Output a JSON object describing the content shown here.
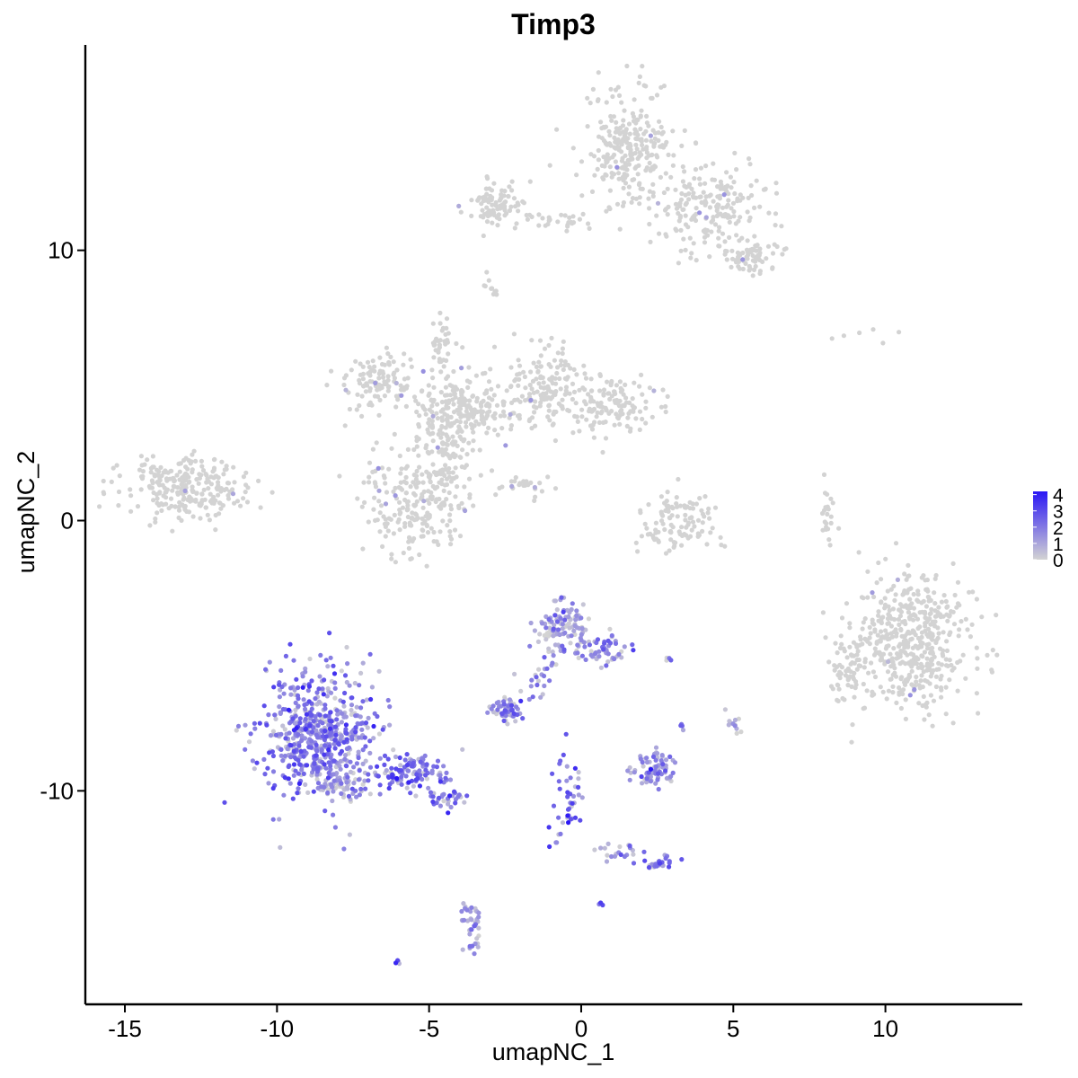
{
  "chart_data": {
    "type": "scatter",
    "title": "Timp3",
    "xlabel": "umapNC_1",
    "ylabel": "umapNC_2",
    "xlim": [
      -16.3,
      14.5
    ],
    "ylim": [
      -17.9,
      17.6
    ],
    "x_ticks": [
      -15,
      -10,
      -5,
      0,
      5,
      10
    ],
    "x_tick_labels": [
      "-15",
      "-10",
      "-5",
      "0",
      "5",
      "10"
    ],
    "y_ticks": [
      -10,
      0,
      10
    ],
    "y_tick_labels": [
      "-10",
      "0",
      "10"
    ],
    "grid": false,
    "legend": {
      "placement": "right",
      "type": "colorbar",
      "labels": [
        "4",
        "3",
        "2",
        "1",
        "0"
      ],
      "values": [
        4,
        3,
        2,
        1,
        0
      ],
      "range": [
        0,
        4.2
      ],
      "low_color": "#d3d3d3",
      "high_color": "#2a16f5"
    },
    "point_color_low": "#d3d3d3",
    "point_color_high": "#2a16f5",
    "clusters": [
      {
        "id": "top-right-upper",
        "cx": 1.5,
        "cy": 13.8,
        "sx": 0.7,
        "sy": 1.1,
        "n": 260,
        "expr": 0.0
      },
      {
        "id": "top-right-arm",
        "cx": 4.2,
        "cy": 11.6,
        "sx": 1.0,
        "sy": 0.8,
        "n": 200,
        "expr": 0.0
      },
      {
        "id": "top-right-tail",
        "cx": 5.6,
        "cy": 9.8,
        "sx": 0.45,
        "sy": 0.4,
        "n": 70,
        "expr": 0.0
      },
      {
        "id": "top-left-arm",
        "cx": -2.7,
        "cy": 11.7,
        "sx": 0.5,
        "sy": 0.45,
        "n": 90,
        "expr": 0.0
      },
      {
        "id": "top-bridge",
        "cx": -0.5,
        "cy": 11.1,
        "sx": 0.7,
        "sy": 0.15,
        "n": 25,
        "expr": 0.0
      },
      {
        "id": "top-small",
        "cx": -3.0,
        "cy": 8.7,
        "sx": 0.15,
        "sy": 0.3,
        "n": 10,
        "expr": 0.0
      },
      {
        "id": "mid-center",
        "cx": -3.9,
        "cy": 4.1,
        "sx": 0.8,
        "sy": 0.7,
        "n": 230,
        "expr": 0.0
      },
      {
        "id": "mid-left-arm",
        "cx": -6.7,
        "cy": 5.2,
        "sx": 0.6,
        "sy": 0.5,
        "n": 110,
        "expr": 0.0
      },
      {
        "id": "mid-up-arm",
        "cx": -4.6,
        "cy": 6.6,
        "sx": 0.2,
        "sy": 0.6,
        "n": 35,
        "expr": 0.0
      },
      {
        "id": "mid-right-arm",
        "cx": -1.1,
        "cy": 5.0,
        "sx": 0.6,
        "sy": 0.8,
        "n": 150,
        "expr": 0.0
      },
      {
        "id": "mid-right-lobe",
        "cx": 1.0,
        "cy": 4.3,
        "sx": 0.8,
        "sy": 0.6,
        "n": 130,
        "expr": 0.0
      },
      {
        "id": "mid-bottom-lobe",
        "cx": -5.5,
        "cy": 0.6,
        "sx": 0.8,
        "sy": 0.9,
        "n": 220,
        "expr": 0.0
      },
      {
        "id": "mid-stem",
        "cx": -4.4,
        "cy": 2.4,
        "sx": 0.4,
        "sy": 0.7,
        "n": 80,
        "expr": 0.0
      },
      {
        "id": "mid-streak",
        "cx": -1.8,
        "cy": 1.2,
        "sx": 0.5,
        "sy": 0.2,
        "n": 25,
        "expr": 0.0
      },
      {
        "id": "left-island",
        "cx": -13.0,
        "cy": 1.2,
        "sx": 1.0,
        "sy": 0.6,
        "n": 260,
        "expr": 0.0
      },
      {
        "id": "center-crescent",
        "cx": 3.2,
        "cy": 0.2,
        "sx": 0.55,
        "sy": 0.45,
        "n": 70,
        "expr": 0.0
      },
      {
        "id": "center-crescent-arc",
        "cx": 2.9,
        "cy": -0.6,
        "sx": 0.8,
        "sy": 0.25,
        "n": 40,
        "expr": 0.0
      },
      {
        "id": "thin-streak",
        "cx": 8.1,
        "cy": 0.3,
        "sx": 0.15,
        "sy": 0.5,
        "n": 22,
        "expr": 0.0
      },
      {
        "id": "right-blob",
        "cx": 10.8,
        "cy": -4.5,
        "sx": 0.9,
        "sy": 1.2,
        "n": 480,
        "expr": 0.0
      },
      {
        "id": "right-blob-left",
        "cx": 8.7,
        "cy": -5.4,
        "sx": 0.35,
        "sy": 0.8,
        "n": 60,
        "expr": 0.0
      },
      {
        "id": "right-sparse",
        "cx": 9.2,
        "cy": 6.8,
        "sx": 0.5,
        "sy": 0.2,
        "n": 6,
        "expr": 0.0
      },
      {
        "id": "purple-main",
        "cx": -8.6,
        "cy": -7.9,
        "sx": 0.95,
        "sy": 1.2,
        "n": 600,
        "expr": 1.9
      },
      {
        "id": "purple-tail",
        "cx": -5.6,
        "cy": -9.3,
        "sx": 0.7,
        "sy": 0.35,
        "n": 120,
        "expr": 2.3
      },
      {
        "id": "purple-tail-end",
        "cx": -4.3,
        "cy": -10.2,
        "sx": 0.35,
        "sy": 0.2,
        "n": 30,
        "expr": 2.0
      },
      {
        "id": "purple-main-bottom",
        "cx": -7.9,
        "cy": -9.8,
        "sx": 0.4,
        "sy": 0.2,
        "n": 40,
        "expr": 0.6
      },
      {
        "id": "mid-cluster-top",
        "cx": -0.6,
        "cy": -3.9,
        "sx": 0.4,
        "sy": 0.5,
        "n": 120,
        "expr": 1.0
      },
      {
        "id": "mid-cluster-arm",
        "cx": 0.8,
        "cy": -4.8,
        "sx": 0.4,
        "sy": 0.4,
        "n": 50,
        "expr": 1.8
      },
      {
        "id": "mid-cluster-arm2",
        "cx": -1.3,
        "cy": -5.7,
        "sx": 0.3,
        "sy": 0.5,
        "n": 25,
        "expr": 1.8
      },
      {
        "id": "small-left",
        "cx": -2.5,
        "cy": -7.0,
        "sx": 0.3,
        "sy": 0.2,
        "n": 60,
        "expr": 1.8
      },
      {
        "id": "small-center-right",
        "cx": 2.4,
        "cy": -9.3,
        "sx": 0.35,
        "sy": 0.35,
        "n": 80,
        "expr": 1.5
      },
      {
        "id": "vertical-line",
        "cx": -0.5,
        "cy": -10.5,
        "sx": 0.25,
        "sy": 0.9,
        "n": 45,
        "expr": 2.2
      },
      {
        "id": "bottom-dots",
        "cx": 1.2,
        "cy": -12.2,
        "sx": 0.6,
        "sy": 0.2,
        "n": 20,
        "expr": 1.6
      },
      {
        "id": "bottom-right",
        "cx": 2.4,
        "cy": -12.7,
        "sx": 0.3,
        "sy": 0.15,
        "n": 30,
        "expr": 2.0
      },
      {
        "id": "bottom-left",
        "cx": -3.6,
        "cy": -15.0,
        "sx": 0.2,
        "sy": 0.6,
        "n": 40,
        "expr": 1.0
      },
      {
        "id": "lone-bottom",
        "cx": -6.0,
        "cy": -16.3,
        "sx": 0.05,
        "sy": 0.05,
        "n": 4,
        "expr": 2.8
      },
      {
        "id": "lone-mid",
        "cx": 0.6,
        "cy": -14.2,
        "sx": 0.05,
        "sy": 0.05,
        "n": 4,
        "expr": 2.8
      },
      {
        "id": "small-right-a",
        "cx": 5.0,
        "cy": -7.5,
        "sx": 0.15,
        "sy": 0.2,
        "n": 12,
        "expr": 1.0
      },
      {
        "id": "small-right-b",
        "cx": 3.3,
        "cy": -7.6,
        "sx": 0.08,
        "sy": 0.08,
        "n": 4,
        "expr": 1.5
      },
      {
        "id": "small-right-c",
        "cx": 2.8,
        "cy": -5.1,
        "sx": 0.08,
        "sy": 0.05,
        "n": 4,
        "expr": 2.6
      }
    ]
  }
}
